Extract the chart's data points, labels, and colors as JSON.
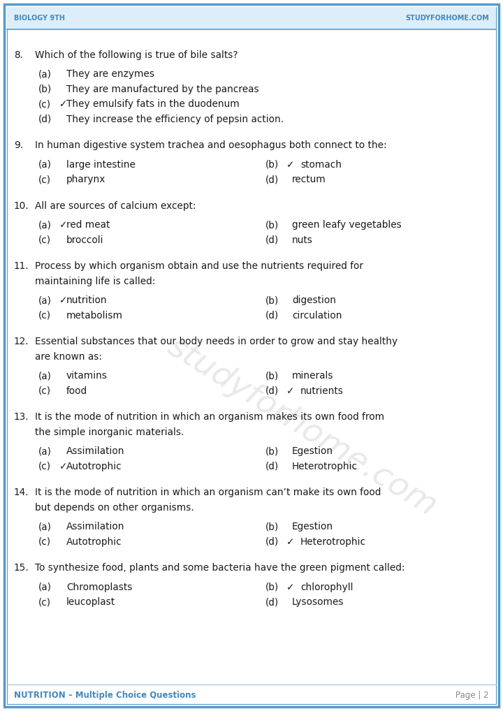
{
  "header_left": "Biology 9th",
  "header_right": "StudyForHome.com",
  "footer_left": "NUTRITION – Multiple Choice Questions",
  "footer_right": "Page | 2",
  "header_color": "#4488bb",
  "border_color": "#5599cc",
  "bg_color": "#ffffff",
  "watermark": "studyforhome.com",
  "header_bg": "#ddeef8",
  "questions": [
    {
      "num": "8.",
      "text": "Which of the following is true of bile salts?",
      "type": "single_col",
      "options": [
        {
          "label": "(a)",
          "check": false,
          "text": "They are enzymes"
        },
        {
          "label": "(b)",
          "check": false,
          "text": "They are manufactured by the pancreas"
        },
        {
          "label": "(c)",
          "check": true,
          "text": "They emulsify fats in the duodenum"
        },
        {
          "label": "(d)",
          "check": false,
          "text": "They increase the efficiency of pepsin action."
        }
      ]
    },
    {
      "num": "9.",
      "text": "In human digestive system trachea and oesophagus both connect to the:",
      "type": "two_col",
      "options": [
        {
          "label": "(a)",
          "check": false,
          "text": "large intestine"
        },
        {
          "label": "(b)",
          "check": true,
          "text": "stomach"
        },
        {
          "label": "(c)",
          "check": false,
          "text": "pharynx"
        },
        {
          "label": "(d)",
          "check": false,
          "text": "rectum"
        }
      ]
    },
    {
      "num": "10.",
      "text": "All are sources of calcium except:",
      "type": "two_col",
      "options": [
        {
          "label": "(a)",
          "check": true,
          "text": "red meat"
        },
        {
          "label": "(b)",
          "check": false,
          "text": "green leafy vegetables"
        },
        {
          "label": "(c)",
          "check": false,
          "text": "broccoli"
        },
        {
          "label": "(d)",
          "check": false,
          "text": "nuts"
        }
      ]
    },
    {
      "num": "11.",
      "text": "Process by which organism obtain and use the nutrients required for maintaining life is called:",
      "type": "two_col",
      "wrap_at": 75,
      "options": [
        {
          "label": "(a)",
          "check": true,
          "text": "nutrition"
        },
        {
          "label": "(b)",
          "check": false,
          "text": "digestion"
        },
        {
          "label": "(c)",
          "check": false,
          "text": "metabolism"
        },
        {
          "label": "(d)",
          "check": false,
          "text": "circulation"
        }
      ]
    },
    {
      "num": "12.",
      "text": "Essential substances that our body needs in order to grow and stay healthy are known as:",
      "type": "two_col",
      "options": [
        {
          "label": "(a)",
          "check": false,
          "text": "vitamins"
        },
        {
          "label": "(b)",
          "check": false,
          "text": "minerals"
        },
        {
          "label": "(c)",
          "check": false,
          "text": "food"
        },
        {
          "label": "(d)",
          "check": true,
          "text": "nutrients"
        }
      ]
    },
    {
      "num": "13.",
      "text": "It is the mode of nutrition in which an organism makes its own food from the simple inorganic materials.",
      "type": "two_col",
      "wrap_at": 74,
      "options": [
        {
          "label": "(a)",
          "check": false,
          "text": "Assimilation"
        },
        {
          "label": "(b)",
          "check": false,
          "text": "Egestion"
        },
        {
          "label": "(c)",
          "check": true,
          "text": "Autotrophic"
        },
        {
          "label": "(d)",
          "check": false,
          "text": "Heterotrophic"
        }
      ]
    },
    {
      "num": "14.",
      "text": "It is the mode of nutrition in which an organism can’t make its own food but depends on other organisms.",
      "type": "two_col",
      "wrap_at": 74,
      "options": [
        {
          "label": "(a)",
          "check": false,
          "text": "Assimilation"
        },
        {
          "label": "(b)",
          "check": false,
          "text": "Egestion"
        },
        {
          "label": "(c)",
          "check": false,
          "text": "Autotrophic"
        },
        {
          "label": "(d)",
          "check": true,
          "text": "Heterotrophic"
        }
      ]
    },
    {
      "num": "15.",
      "text": "To synthesize food, plants and some bacteria have the green pigment called:",
      "type": "two_col",
      "options": [
        {
          "label": "(a)",
          "check": false,
          "text": "Chromoplasts"
        },
        {
          "label": "(b)",
          "check": true,
          "text": "chlorophyll"
        },
        {
          "label": "(c)",
          "check": false,
          "text": "leucoplast"
        },
        {
          "label": "(d)",
          "check": false,
          "text": "Lysosomes"
        }
      ]
    }
  ]
}
